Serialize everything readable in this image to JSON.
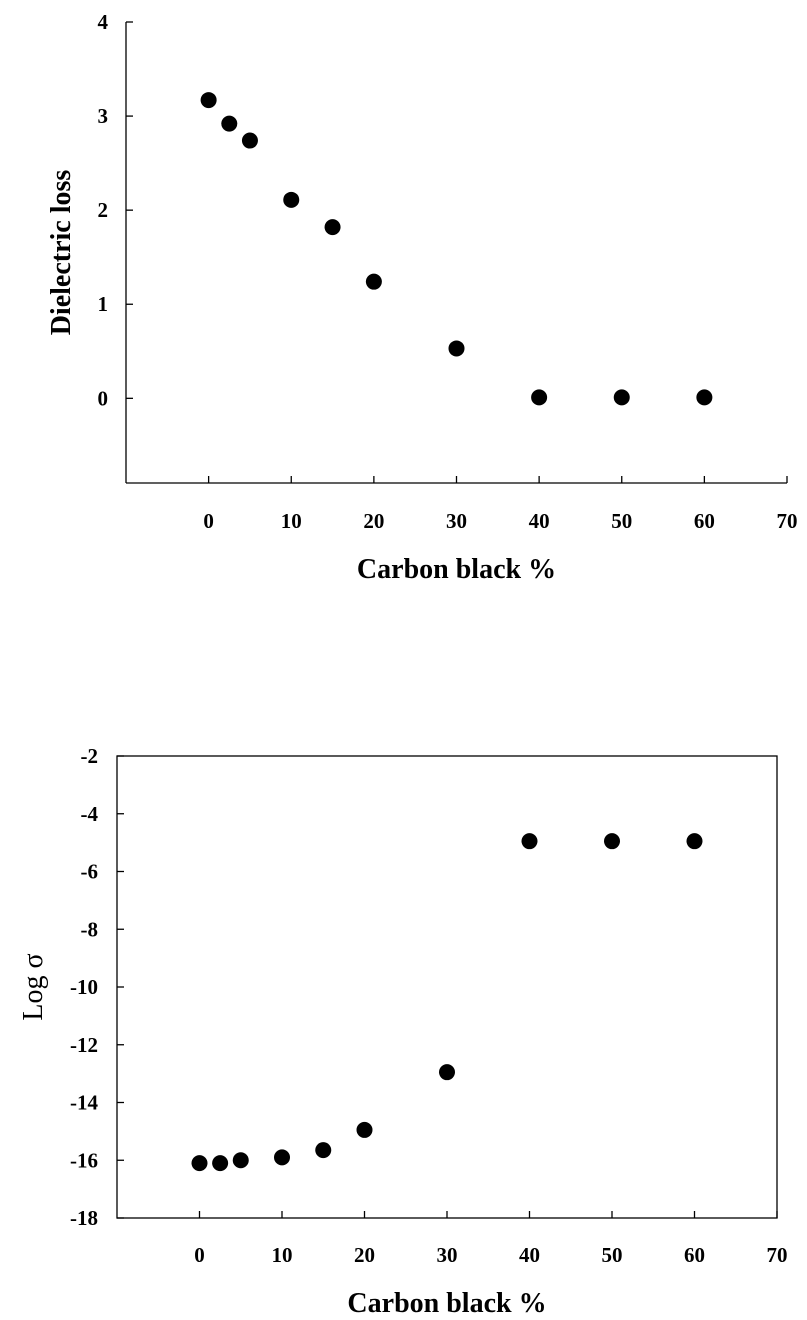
{
  "chart_data": [
    {
      "type": "scatter",
      "xlabel": "Carbon black %",
      "ylabel": "Dielectric loss",
      "xlim": [
        -10,
        70
      ],
      "ylim": [
        -0.9,
        4
      ],
      "xticks": [
        0,
        10,
        20,
        30,
        40,
        50,
        60,
        70
      ],
      "yticks": [
        0,
        1,
        2,
        3,
        4
      ],
      "x": [
        0,
        2.5,
        5,
        10,
        15,
        20,
        30,
        40,
        50,
        60
      ],
      "y": [
        3.17,
        2.92,
        2.74,
        2.11,
        1.82,
        1.24,
        0.53,
        0.01,
        0.01,
        0.01
      ],
      "grid": false,
      "frame": "left-bottom"
    },
    {
      "type": "scatter",
      "xlabel": "Carbon black %",
      "ylabel": "Log σ",
      "xlim": [
        -10,
        70
      ],
      "ylim": [
        -18,
        -2
      ],
      "xticks": [
        0,
        10,
        20,
        30,
        40,
        50,
        60,
        70
      ],
      "yticks": [
        -2,
        -4,
        -6,
        -8,
        -10,
        -12,
        -14,
        -16,
        -18
      ],
      "x": [
        0,
        2.5,
        5,
        10,
        15,
        20,
        30,
        40,
        50,
        60
      ],
      "y": [
        -16.1,
        -16.1,
        -16.0,
        -15.9,
        -15.65,
        -14.95,
        -12.95,
        -4.95,
        -4.95,
        -4.95
      ],
      "grid": false,
      "frame": "box"
    }
  ]
}
